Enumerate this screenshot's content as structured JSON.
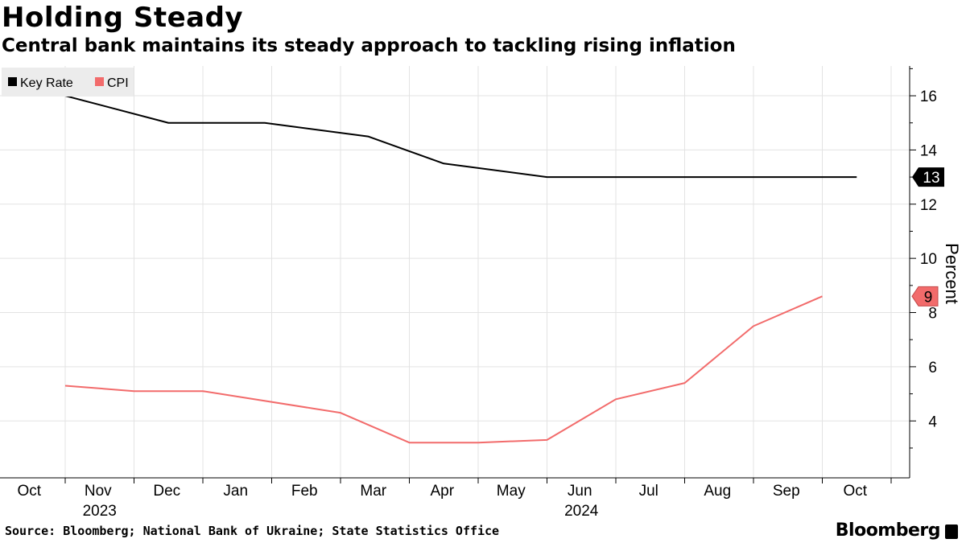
{
  "title": "Holding Steady",
  "subtitle": "Central bank maintains its steady approach to tackling rising inflation",
  "source": "Source: Bloomberg; National Bank of Ukraine; State Statistics Office",
  "brand": "Bloomberg",
  "chart_data": {
    "type": "line",
    "title": "Holding Steady",
    "ylabel": "Percent",
    "xlabel": "",
    "ylim": [
      1.9,
      17.1
    ],
    "yticks": [
      4,
      6,
      8,
      10,
      12,
      14,
      16
    ],
    "x_tick_labels": [
      "Oct",
      "Nov",
      "Dec",
      "Jan",
      "Feb",
      "Mar",
      "Apr",
      "May",
      "Jun",
      "Jul",
      "Aug",
      "Sep",
      "Oct"
    ],
    "year_labels": [
      {
        "label": "2023",
        "month_index": 1
      },
      {
        "label": "2024",
        "month_index": 8
      }
    ],
    "legend": {
      "position": "top-left",
      "entries": [
        "Key Rate",
        "CPI"
      ]
    },
    "grid": true,
    "series": [
      {
        "name": "Key Rate",
        "color": "#000000",
        "last_value_label": "13",
        "x": [
          0.5,
          2.0,
          3.4,
          4.9,
          6.0,
          7.5,
          8.9,
          10.4,
          12.0
        ],
        "values": [
          16,
          15,
          15,
          14.5,
          13.5,
          13,
          13,
          13,
          13
        ]
      },
      {
        "name": "CPI",
        "color": "#f26b6b",
        "last_value_label": "9",
        "x": [
          0.5,
          1.5,
          2.5,
          4.5,
          5.5,
          6.5,
          7.5,
          8.5,
          9.5,
          10.5,
          11.5
        ],
        "values": [
          5.3,
          5.1,
          5.1,
          4.3,
          3.2,
          3.2,
          3.3,
          4.8,
          5.4,
          7.5,
          8.6
        ]
      }
    ]
  }
}
